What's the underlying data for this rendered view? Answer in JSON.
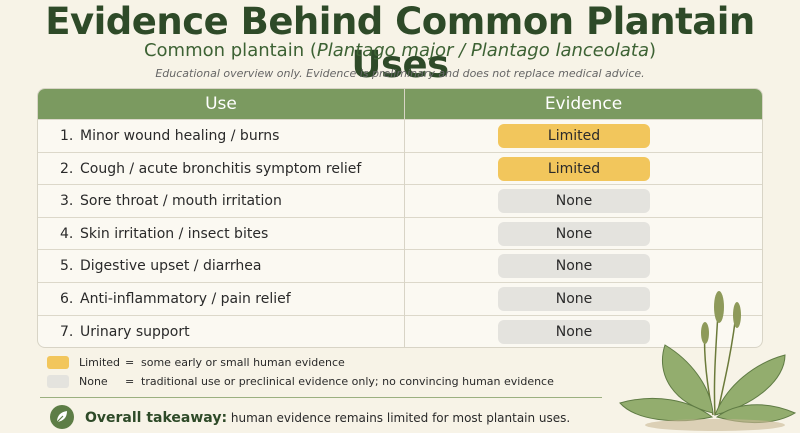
{
  "header": {
    "title": "Evidence Behind Common Plantain Uses",
    "subtitle_start": "Common plantain (",
    "subtitle_italic": "Plantago major / Plantago lanceolata",
    "subtitle_end": ")",
    "note": "Educational overview only. Evidence is preliminary and does not replace medical advice."
  },
  "table": {
    "columns": [
      "Use",
      "Evidence"
    ],
    "rows": [
      [
        "1.",
        "Minor wound healing / burns",
        "Limited"
      ],
      [
        "2.",
        "Cough / acute bronchitis symptom relief",
        "Limited"
      ],
      [
        "3.",
        "Sore throat / mouth irritation",
        "None"
      ],
      [
        "4.",
        "Skin irritation / insect bites",
        "None"
      ],
      [
        "5.",
        "Digestive upset / diarrhea",
        "None"
      ],
      [
        "6.",
        "Anti-inflammatory / pain relief",
        "None"
      ],
      [
        "7.",
        "Urinary support",
        "None"
      ]
    ]
  },
  "legend": [
    {
      "label": "Limited",
      "separator": "=",
      "description": "some early or small human evidence"
    },
    {
      "label": "None",
      "separator": "=",
      "description": "traditional use or preclinical evidence only; no convincing human evidence"
    }
  ],
  "takeaway": {
    "label": "Overall takeaway:",
    "text": "human evidence remains limited for most plantain uses."
  }
}
